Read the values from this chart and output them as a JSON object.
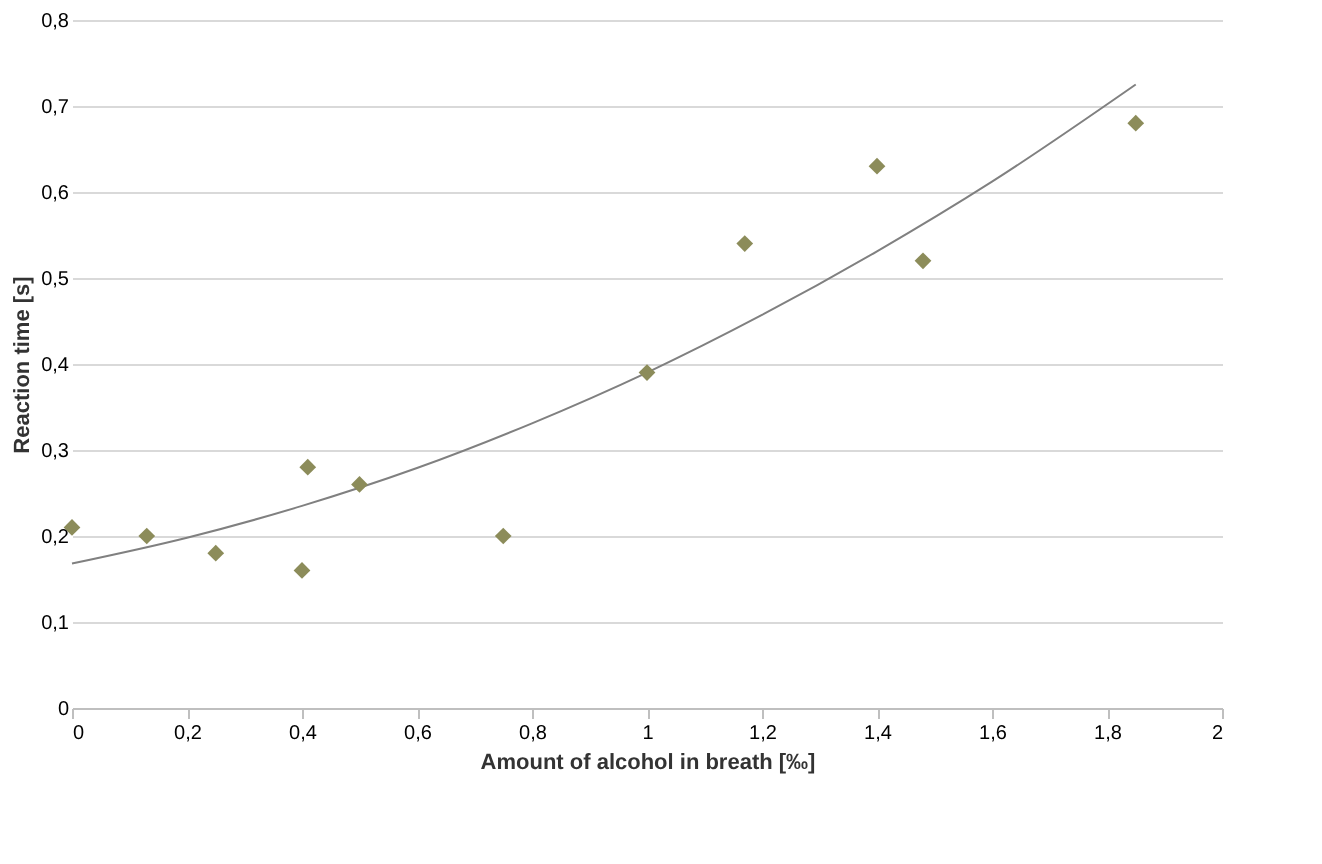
{
  "chart_data": {
    "type": "scatter",
    "xlabel": "Amount of alcohol in breath [‰]",
    "ylabel": "Reaction time [s]",
    "xlim": [
      0,
      2
    ],
    "ylim": [
      0,
      0.8
    ],
    "xticks": [
      0,
      {
        "value": 0.2,
        "label": "0,2"
      },
      {
        "value": 0.4,
        "label": "0,4"
      },
      {
        "value": 0.6,
        "label": "0,6"
      },
      {
        "value": 0.8,
        "label": "0,8"
      },
      1,
      {
        "value": 1.2,
        "label": "1,2"
      },
      {
        "value": 1.4,
        "label": "1,4"
      },
      {
        "value": 1.6,
        "label": "1,6"
      },
      {
        "value": 1.8,
        "label": "1,8"
      },
      2
    ],
    "yticks": [
      0,
      {
        "value": 0.1,
        "label": "0,1"
      },
      {
        "value": 0.2,
        "label": "0,2"
      },
      {
        "value": 0.3,
        "label": "0,3"
      },
      {
        "value": 0.4,
        "label": "0,4"
      },
      {
        "value": 0.5,
        "label": "0,5"
      },
      {
        "value": 0.6,
        "label": "0,6"
      },
      {
        "value": 0.7,
        "label": "0,7"
      },
      {
        "value": 0.8,
        "label": "0,8"
      }
    ],
    "grid": "y",
    "series": [
      {
        "color": "#8c8c5a",
        "marker": "diamond",
        "x": [
          0,
          0.13,
          0.25,
          0.4,
          0.41,
          0.5,
          0.75,
          1.0,
          1.17,
          1.4,
          1.48,
          1.85
        ],
        "values": [
          0.21,
          0.2,
          0.18,
          0.16,
          0.28,
          0.26,
          0.2,
          0.39,
          0.54,
          0.63,
          0.52,
          0.68
        ]
      },
      {
        "type": "line",
        "color": "#808080",
        "marker": "none",
        "line_style": "solid",
        "x": [
          0,
          0.2,
          0.4,
          0.6,
          0.8,
          1.0,
          1.2,
          1.4,
          1.6,
          1.85
        ],
        "values": [
          0.168,
          0.198,
          0.235,
          0.279,
          0.331,
          0.39,
          0.457,
          0.531,
          0.612,
          0.725
        ]
      }
    ]
  }
}
